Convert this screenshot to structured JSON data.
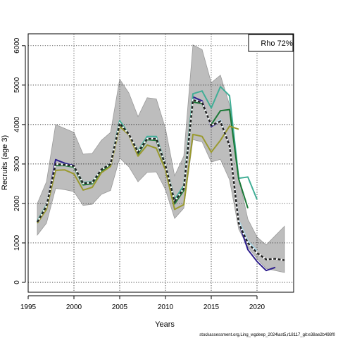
{
  "chart_data": {
    "type": "line",
    "xlabel": "Years",
    "ylabel": "Recruits (age 3)",
    "xlim": [
      1995,
      2024
    ],
    "ylim": [
      -250,
      6300
    ],
    "xticks": [
      1995,
      2000,
      2005,
      2010,
      2015,
      2020
    ],
    "yticks": [
      0,
      1000,
      2000,
      3000,
      4000,
      5000,
      6000
    ],
    "grid": true,
    "legend": {
      "position": "top-right",
      "text": "Rho 72%"
    },
    "caption": "stockassessment.org,Ling_wgdeep_2024last5,r18117_git:e38ae2b498f0",
    "confidence_band": {
      "x": [
        1996,
        1997,
        1998,
        1999,
        2000,
        2001,
        2002,
        2003,
        2004,
        2005,
        2006,
        2007,
        2008,
        2009,
        2010,
        2011,
        2012,
        2013,
        2014,
        2015,
        2016,
        2017,
        2018,
        2019,
        2020,
        2021,
        2023
      ],
      "upper": [
        2000,
        2550,
        4000,
        3900,
        3800,
        3250,
        3270,
        3600,
        3800,
        5150,
        4800,
        4200,
        4680,
        4650,
        3900,
        2700,
        3200,
        6020,
        5900,
        5060,
        5250,
        4500,
        2650,
        1600,
        1150,
        950,
        1420
      ],
      "lower": [
        1200,
        1500,
        2380,
        2350,
        2300,
        1950,
        1980,
        2230,
        2330,
        3150,
        2930,
        2550,
        2790,
        2800,
        2350,
        1620,
        1880,
        3620,
        3560,
        3050,
        3120,
        2600,
        1350,
        900,
        600,
        350,
        250
      ]
    },
    "series": [
      {
        "color": "#abd9e9",
        "x": [
          1996,
          1997,
          1998,
          1999,
          2000,
          2001,
          2002,
          2003,
          2004,
          2005,
          2006,
          2007,
          2008,
          2009,
          2010,
          2011,
          2012,
          2013,
          2014,
          2015,
          2016,
          2017,
          2018,
          2019,
          2020
        ],
        "values": [
          1550,
          1950,
          2980,
          2960,
          2920,
          2490,
          2500,
          2860,
          2990,
          4060,
          3760,
          3300,
          3700,
          3680,
          2960,
          2080,
          2430,
          4650,
          4560,
          3960,
          4120,
          3450,
          1570,
          1050,
          800
        ]
      },
      {
        "color": "#2d1d8c",
        "x": [
          1996,
          1997,
          1998,
          1999,
          2000,
          2001,
          2002,
          2003,
          2004,
          2005,
          2006,
          2007,
          2008,
          2009,
          2010,
          2011,
          2012,
          2013,
          2014,
          2015,
          2016,
          2017,
          2018,
          2019,
          2020,
          2021,
          2022
        ],
        "values": [
          1540,
          1920,
          3110,
          3020,
          2960,
          2490,
          2520,
          2850,
          3000,
          4010,
          3760,
          3300,
          3650,
          3620,
          2950,
          2010,
          2340,
          4700,
          4600,
          3950,
          4080,
          3480,
          1520,
          830,
          530,
          300,
          380
        ]
      },
      {
        "color": "#41ae96",
        "x": [
          1996,
          1997,
          1998,
          1999,
          2000,
          2001,
          2002,
          2003,
          2004,
          2005,
          2006,
          2007,
          2008,
          2009,
          2010,
          2011,
          2012,
          2013,
          2014,
          2015,
          2016,
          2017,
          2018,
          2019,
          2020
        ],
        "values": [
          1560,
          1960,
          3000,
          2990,
          2950,
          2530,
          2550,
          2870,
          3010,
          4100,
          3760,
          3330,
          3700,
          3700,
          2980,
          2100,
          2450,
          4780,
          4850,
          4420,
          4960,
          4730,
          2640,
          2670,
          2100
        ]
      },
      {
        "color": "#1b7837",
        "x": [
          1996,
          1997,
          1998,
          1999,
          2000,
          2001,
          2002,
          2003,
          2004,
          2005,
          2006,
          2007,
          2008,
          2009,
          2010,
          2011,
          2012,
          2013,
          2014,
          2015,
          2016,
          2017,
          2018,
          2019
        ],
        "values": [
          1520,
          1900,
          2960,
          2960,
          2920,
          2470,
          2500,
          2820,
          2980,
          4000,
          3740,
          3250,
          3620,
          3600,
          2930,
          1990,
          2330,
          4570,
          4530,
          4000,
          4350,
          4380,
          2620,
          1880
        ]
      },
      {
        "color": "#9a9a2e",
        "x": [
          1996,
          1997,
          1998,
          1999,
          2000,
          2001,
          2002,
          2003,
          2004,
          2005,
          2006,
          2007,
          2008,
          2009,
          2010,
          2011,
          2012,
          2013,
          2014,
          2015,
          2016,
          2017,
          2018
        ],
        "values": [
          1500,
          1850,
          2840,
          2850,
          2750,
          2340,
          2410,
          2780,
          2940,
          3950,
          3740,
          3200,
          3480,
          3400,
          2850,
          1850,
          1970,
          3750,
          3700,
          3300,
          3600,
          3960,
          3880
        ]
      },
      {
        "color": "#222222",
        "dashed": true,
        "x": [
          1996,
          1997,
          1998,
          1999,
          2000,
          2001,
          2002,
          2003,
          2004,
          2005,
          2006,
          2007,
          2008,
          2009,
          2010,
          2011,
          2012,
          2013,
          2014,
          2015,
          2016,
          2017,
          2018,
          2019,
          2020,
          2021,
          2022,
          2023
        ],
        "values": [
          1530,
          1930,
          3000,
          2980,
          2950,
          2510,
          2530,
          2860,
          3000,
          4030,
          3760,
          3300,
          3640,
          3640,
          2960,
          2050,
          2380,
          4620,
          4560,
          3980,
          4080,
          3460,
          1500,
          1000,
          750,
          580,
          600,
          560
        ]
      }
    ]
  }
}
